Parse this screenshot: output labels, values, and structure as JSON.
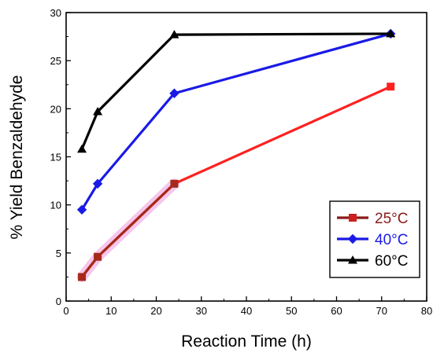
{
  "chart_data": {
    "type": "line",
    "xlabel": "Reaction Time (h)",
    "ylabel": "% Yield Benzaldehyde",
    "xlim": [
      0,
      80
    ],
    "ylim": [
      0,
      30
    ],
    "x_ticks": [
      0,
      10,
      20,
      30,
      40,
      50,
      60,
      70,
      80
    ],
    "y_ticks": [
      0,
      5,
      10,
      15,
      20,
      25,
      30
    ],
    "grid": false,
    "legend_position": "bottom-right",
    "series": [
      {
        "name": "25°C",
        "marker": "square",
        "line_color": "#ff2020",
        "marker_color": "#ff2020",
        "highlight_color": "#f6c6ec",
        "points": [
          {
            "x": 3.5,
            "y": 2.5
          },
          {
            "x": 7,
            "y": 4.6
          },
          {
            "x": 24,
            "y": 12.2
          },
          {
            "x": 72,
            "y": 22.3
          }
        ],
        "highlighted_points": 3
      },
      {
        "name": "40°C",
        "marker": "diamond",
        "line_color": "#1a1ae6",
        "marker_color": "#1a1ae6",
        "points": [
          {
            "x": 3.5,
            "y": 9.5
          },
          {
            "x": 7,
            "y": 12.2
          },
          {
            "x": 24,
            "y": 21.6
          },
          {
            "x": 72,
            "y": 27.8
          }
        ]
      },
      {
        "name": "60°C",
        "marker": "triangle",
        "line_color": "#000000",
        "marker_color": "#000000",
        "points": [
          {
            "x": 3.5,
            "y": 15.8
          },
          {
            "x": 7,
            "y": 19.7
          },
          {
            "x": 24,
            "y": 27.7
          },
          {
            "x": 72,
            "y": 27.8
          }
        ]
      }
    ]
  },
  "legend": {
    "items": [
      {
        "label": "25°C",
        "color": "#8b1a1a",
        "marker_color": "#cc2020"
      },
      {
        "label": "40°C",
        "color": "#1a1ae6",
        "marker_color": "#1a1ae6"
      },
      {
        "label": "60°C",
        "color": "#000000",
        "marker_color": "#000000"
      }
    ]
  }
}
